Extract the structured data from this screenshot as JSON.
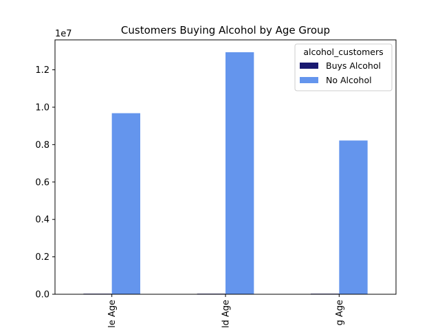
{
  "chart_data": {
    "type": "bar",
    "title": "Customers Buying Alcohol by Age Group",
    "xlabel": "",
    "ylabel": "",
    "offset_text": "1e7",
    "categories": [
      "le Age",
      "ld Age",
      "g Age"
    ],
    "series": [
      {
        "name": "Buys Alcohol",
        "values": [
          30000,
          30000,
          30000
        ],
        "color": "#191970"
      },
      {
        "name": "No Alcohol",
        "values": [
          9680000,
          12940000,
          8220000
        ],
        "color": "#6495ED"
      }
    ],
    "ylim": [
      0,
      13600000
    ],
    "yticks": [
      0,
      2000000,
      4000000,
      6000000,
      8000000,
      10000000,
      12000000
    ],
    "ytick_labels": [
      "0.0",
      "0.2",
      "0.4",
      "0.6",
      "0.8",
      "1.0",
      "1.2"
    ],
    "legend": {
      "title": "alcohol_customers",
      "placement": "top-right"
    },
    "grid": false
  }
}
